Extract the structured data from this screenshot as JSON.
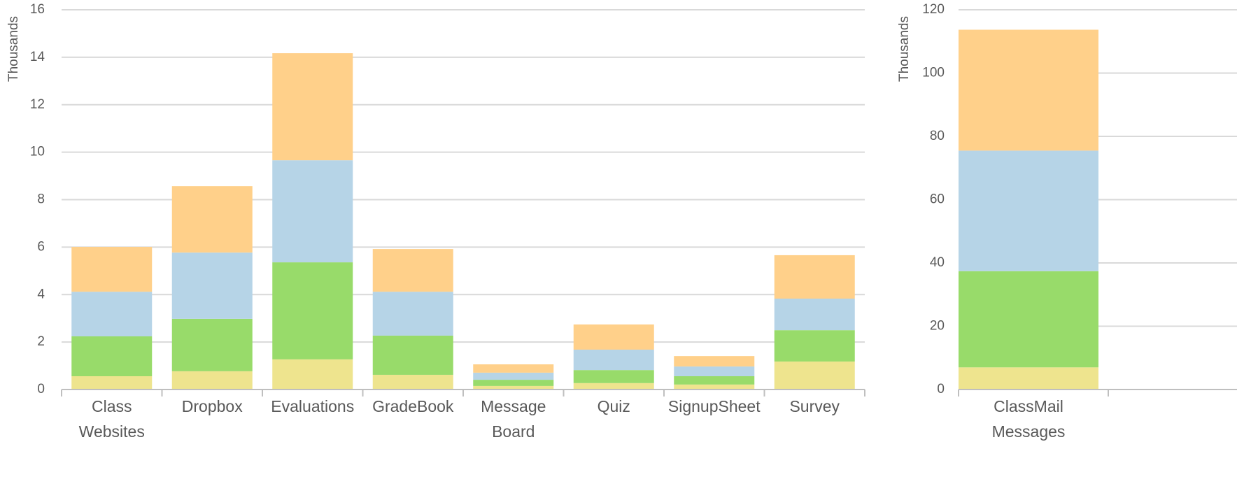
{
  "chart_data": [
    {
      "type": "stacked_bar",
      "y_label": "Thousands",
      "categories": [
        "Class Websites",
        "Dropbox",
        "Evaluations",
        "GradeBook",
        "Message Board",
        "Quiz",
        "SignupSheet",
        "Survey"
      ],
      "series": [
        {
          "color": "#eee48e",
          "values": [
            0.56,
            0.77,
            1.27,
            0.62,
            0.15,
            0.27,
            0.21,
            1.18
          ]
        },
        {
          "color": "#98db6a",
          "values": [
            1.68,
            2.21,
            4.09,
            1.65,
            0.26,
            0.55,
            0.35,
            1.32
          ]
        },
        {
          "color": "#b6d4e7",
          "values": [
            1.88,
            2.79,
            4.3,
            1.85,
            0.3,
            0.86,
            0.41,
            1.33
          ]
        },
        {
          "color": "#ffd08a",
          "values": [
            1.89,
            2.8,
            4.51,
            1.8,
            0.35,
            1.06,
            0.44,
            1.83
          ]
        }
      ],
      "ylim": [
        0,
        16
      ],
      "yticks": [
        0,
        2,
        4,
        6,
        8,
        10,
        12,
        14,
        16
      ],
      "grid": true
    },
    {
      "type": "stacked_bar",
      "y_label": "Thousands",
      "categories": [
        "ClassMail Messages"
      ],
      "series": [
        {
          "color": "#eee48e",
          "values": [
            7
          ]
        },
        {
          "color": "#98db6a",
          "values": [
            30.4
          ]
        },
        {
          "color": "#b6d4e7",
          "values": [
            38.1
          ]
        },
        {
          "color": "#ffd08a",
          "values": [
            38.2
          ]
        }
      ],
      "ylim": [
        0,
        120
      ],
      "yticks": [
        0,
        20,
        40,
        60,
        80,
        100,
        120
      ],
      "grid": true
    }
  ]
}
